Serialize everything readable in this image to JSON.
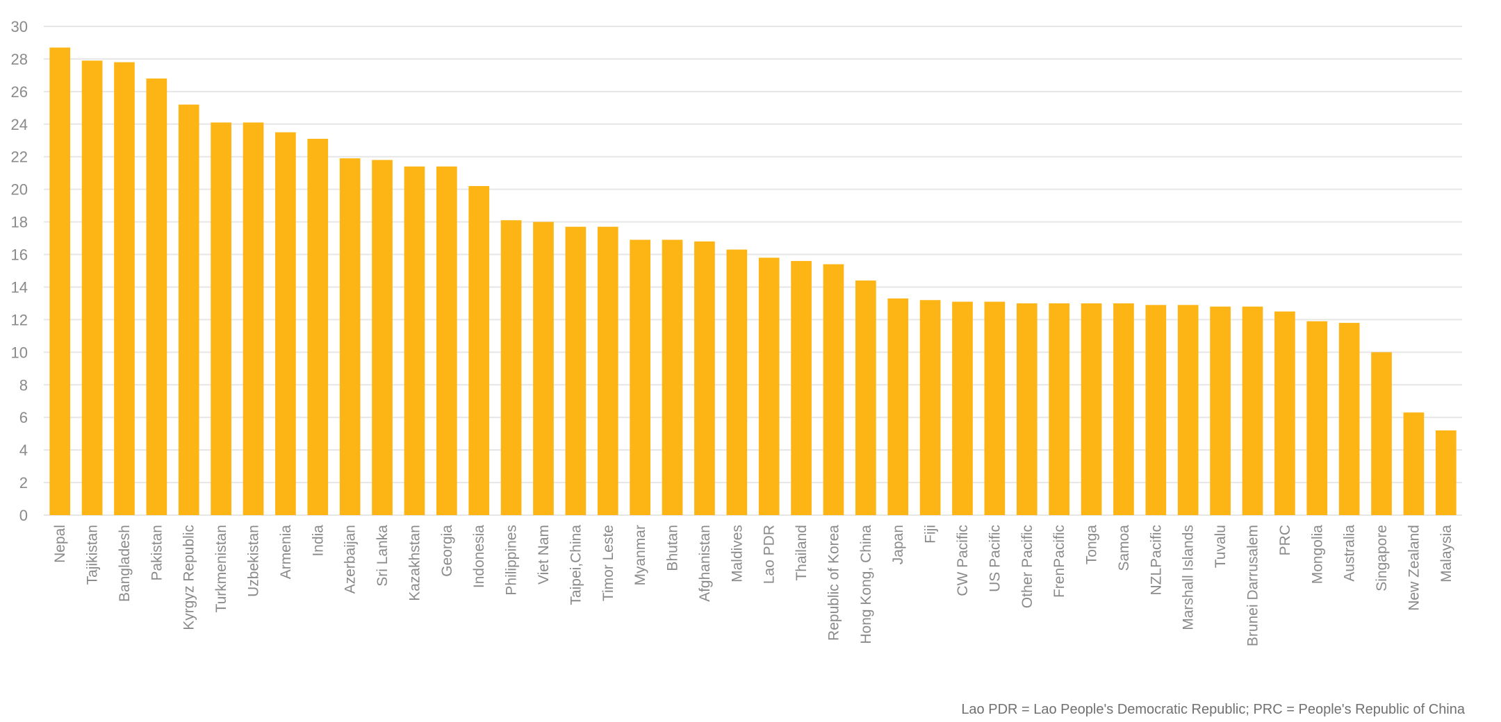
{
  "chart_data": {
    "type": "bar",
    "title": "",
    "xlabel": "",
    "ylabel": "",
    "ylim": [
      0,
      30
    ],
    "yticks": [
      0,
      2,
      4,
      6,
      8,
      10,
      12,
      14,
      16,
      18,
      20,
      22,
      24,
      26,
      28,
      30
    ],
    "grid": true,
    "legend": "none",
    "bar_color": "#FDB515",
    "grid_color": "#E6E6E6",
    "categories": [
      "Nepal",
      "Tajikistan",
      "Bangladesh",
      "Pakistan",
      "Kyrgyz Republic",
      "Turkmenistan",
      "Uzbekistan",
      "Armenia",
      "India",
      "Azerbaijan",
      "Sri Lanka",
      "Kazakhstan",
      "Georgia",
      "Indonesia",
      "Philippines",
      "Viet Nam",
      "Taipei,China",
      "Timor Leste",
      "Myanmar",
      "Bhutan",
      "Afghanistan",
      "Maldives",
      "Lao PDR",
      "Thailand",
      "Republic of Korea",
      "Hong Kong, China",
      "Japan",
      "Fiji",
      "CW Pacific",
      "US Pacific",
      "Other Pacific",
      "FrenPacific",
      "Tonga",
      "Samoa",
      "NZLPacific",
      "Marshall Islands",
      "Tuvalu",
      "Brunei Darrusalem",
      "PRC",
      "Mongolia",
      "Australia",
      "Singapore",
      "New Zealand",
      "Malaysia"
    ],
    "values": [
      28.7,
      27.9,
      27.8,
      26.8,
      25.2,
      24.1,
      24.1,
      23.5,
      23.1,
      21.9,
      21.8,
      21.4,
      21.4,
      20.2,
      18.1,
      18.0,
      17.7,
      17.7,
      16.9,
      16.9,
      16.8,
      16.3,
      15.8,
      15.6,
      15.4,
      14.4,
      13.3,
      13.2,
      13.1,
      13.1,
      13.0,
      13.0,
      13.0,
      13.0,
      12.9,
      12.9,
      12.8,
      12.8,
      12.5,
      11.9,
      11.8,
      10.0,
      6.3,
      5.2
    ]
  },
  "footnote": "Lao PDR = Lao People's Democratic Republic; PRC = People's Republic of China"
}
